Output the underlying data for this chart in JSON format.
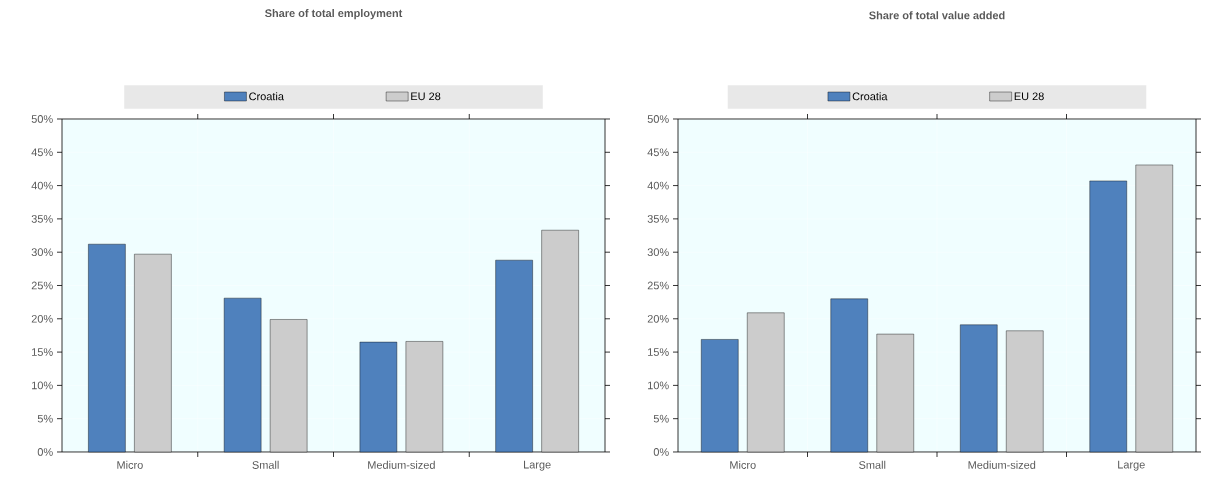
{
  "chart_data": [
    {
      "type": "bar",
      "title": "Share of total employment",
      "categories": [
        "Micro",
        "Small",
        "Medium-sized",
        "Large"
      ],
      "series": [
        {
          "name": "Croatia",
          "color": "#4f81bd",
          "values": [
            31.2,
            23.1,
            16.5,
            28.8
          ]
        },
        {
          "name": "EU 28",
          "color": "#cccccc",
          "values": [
            29.7,
            19.9,
            16.6,
            33.3
          ]
        }
      ],
      "ylim": [
        0,
        50
      ],
      "yticks": [
        {
          "value": 0,
          "label": "0%"
        },
        {
          "value": 5,
          "label": "5%"
        },
        {
          "value": 10,
          "label": "10%"
        },
        {
          "value": 15,
          "label": "15%"
        },
        {
          "value": 20,
          "label": "20%"
        },
        {
          "value": 25,
          "label": "25%"
        },
        {
          "value": 30,
          "label": "30%"
        },
        {
          "value": 35,
          "label": "35%"
        },
        {
          "value": 40,
          "label": "40%"
        },
        {
          "value": 45,
          "label": "45%"
        },
        {
          "value": 50,
          "label": "50%"
        }
      ],
      "grid": true,
      "legend": "top"
    },
    {
      "type": "bar",
      "title": "Share of total value added",
      "categories": [
        "Micro",
        "Small",
        "Medium-sized",
        "Large"
      ],
      "series": [
        {
          "name": "Croatia",
          "color": "#4f81bd",
          "values": [
            16.9,
            23.0,
            19.1,
            40.7
          ]
        },
        {
          "name": "EU 28",
          "color": "#cccccc",
          "values": [
            20.9,
            17.7,
            18.2,
            43.1
          ]
        }
      ],
      "ylim": [
        0,
        50
      ],
      "yticks": [
        {
          "value": 0,
          "label": "0%"
        },
        {
          "value": 5,
          "label": "5%"
        },
        {
          "value": 10,
          "label": "10%"
        },
        {
          "value": 15,
          "label": "15%"
        },
        {
          "value": 20,
          "label": "20%"
        },
        {
          "value": 25,
          "label": "25%"
        },
        {
          "value": 30,
          "label": "30%"
        },
        {
          "value": 35,
          "label": "35%"
        },
        {
          "value": 40,
          "label": "40%"
        },
        {
          "value": 45,
          "label": "45%"
        },
        {
          "value": 50,
          "label": "50%"
        }
      ],
      "grid": true,
      "legend": "top"
    }
  ]
}
